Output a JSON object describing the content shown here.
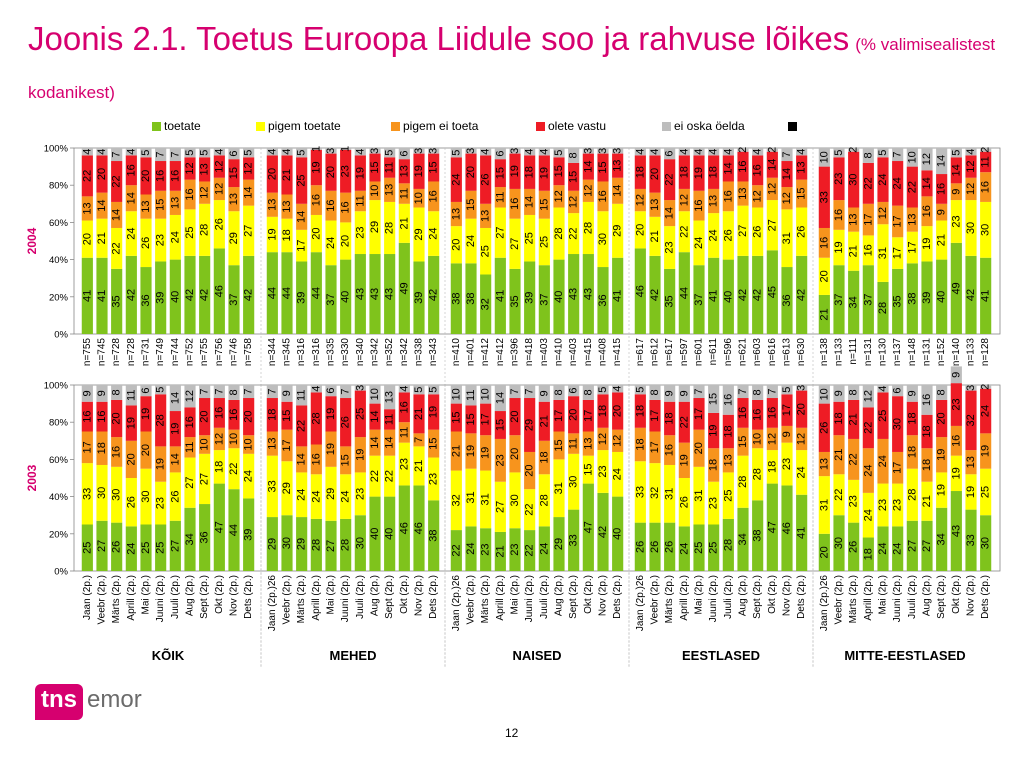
{
  "title": {
    "main": "Joonis 2.1. Toetus Euroopa Liidule soo ja rahvuse lõikes",
    "sub": "(% valimisealistest kodanikest)"
  },
  "page_number": "12",
  "logo": {
    "tns": "tns",
    "emor": "emor"
  },
  "colors": {
    "toetate": "#7fc31c",
    "pigem_toetate": "#ffff00",
    "pigem_ei_toeta": "#f7941d",
    "olete_vastu": "#ee1c25",
    "ei_oska": "#bdbdbd"
  },
  "chart_data": [
    {
      "type": "bar",
      "stacked": true,
      "percent": true,
      "row_label": "2004",
      "ylim": [
        0,
        100
      ],
      "yticks": [
        "0%",
        "20%",
        "40%",
        "60%",
        "80%",
        "100%"
      ],
      "legend": [
        "toetate",
        "pigem toetate",
        "pigem ei toeta",
        "olete vastu",
        "ei oska öelda",
        ""
      ],
      "legend_position": "top",
      "groups": [
        "KÕIK",
        "MEHED",
        "NAISED",
        "EESTLASED",
        "MITTE-EESTLASED"
      ],
      "categories": [
        [
          "n=755",
          "n=745",
          "n=728",
          "n=728",
          "n=731",
          "n=749",
          "n=744",
          "n=752",
          "n=755",
          "n=756",
          "n=746",
          "n=758"
        ],
        [
          "n=344",
          "n=345",
          "n=316",
          "n=316",
          "n=335",
          "n=330",
          "n=340",
          "n=342",
          "n=352",
          "n=342",
          "n=338",
          "n=343"
        ],
        [
          "n=410",
          "n=401",
          "n=412",
          "n=412",
          "n=396",
          "n=418",
          "n=403",
          "n=410",
          "n=403",
          "n=415",
          "n=408",
          "n=415"
        ],
        [
          "n=617",
          "n=612",
          "n=617",
          "n=597",
          "n=601",
          "n=611",
          "n=596",
          "n=621",
          "n=603",
          "n=616",
          "n=613",
          "n=630"
        ],
        [
          "n=138",
          "n=133",
          "n=111",
          "n=131",
          "n=130",
          "n=137",
          "n=148",
          "n=131",
          "n=152",
          "n=140",
          "n=133",
          "n=128"
        ]
      ],
      "series": [
        {
          "name": "toetate",
          "values": [
            [
              41,
              41,
              35,
              42,
              36,
              39,
              40,
              42,
              42,
              46,
              37,
              42
            ],
            [
              44,
              44,
              39,
              44,
              37,
              40,
              43,
              43,
              43,
              49,
              39,
              42
            ],
            [
              38,
              38,
              32,
              41,
              35,
              39,
              37,
              40,
              43,
              43,
              36,
              41
            ],
            [
              46,
              42,
              35,
              44,
              37,
              41,
              40,
              42,
              42,
              45,
              36,
              42
            ],
            [
              21,
              37,
              34,
              37,
              28,
              35,
              38,
              39,
              40,
              49,
              42,
              41
            ]
          ]
        },
        {
          "name": "pigem toetate",
          "values": [
            [
              20,
              21,
              22,
              24,
              26,
              23,
              24,
              25,
              28,
              26,
              29,
              27
            ],
            [
              19,
              18,
              17,
              20,
              24,
              20,
              23,
              29,
              28,
              21,
              29,
              24
            ],
            [
              20,
              24,
              25,
              27,
              27,
              25,
              25,
              28,
              22,
              28,
              30,
              29
            ],
            [
              20,
              21,
              23,
              22,
              24,
              24,
              26,
              27,
              26,
              27,
              31,
              26
            ],
            [
              20,
              19,
              21,
              16,
              31,
              17,
              17,
              19,
              21,
              23,
              30,
              30
            ]
          ]
        },
        {
          "name": "pigem ei toeta",
          "values": [
            [
              13,
              14,
              14,
              14,
              13,
              15,
              13,
              16,
              12,
              12,
              13,
              14
            ],
            [
              13,
              13,
              14,
              16,
              16,
              16,
              11,
              10,
              13,
              11,
              10,
              16
            ],
            [
              13,
              15,
              13,
              11,
              16,
              14,
              15,
              12,
              12,
              12,
              16,
              14
            ],
            [
              12,
              13,
              14,
              12,
              16,
              13,
              16,
              13,
              12,
              12,
              12,
              15
            ],
            [
              16,
              16,
              13,
              17,
              12,
              17,
              13,
              16,
              9,
              9,
              12,
              16
            ]
          ]
        },
        {
          "name": "olete vastu",
          "values": [
            [
              22,
              20,
              22,
              16,
              20,
              16,
              16,
              12,
              13,
              12,
              15,
              12
            ],
            [
              20,
              21,
              25,
              19,
              20,
              23,
              19,
              15,
              11,
              13,
              19,
              15
            ],
            [
              24,
              20,
              26,
              15,
              19,
              18,
              19,
              15,
              15,
              14,
              15,
              13
            ],
            [
              18,
              20,
              22,
              18,
              19,
              18,
              14,
              16,
              16,
              14,
              14,
              13
            ],
            [
              33,
              23,
              30,
              22,
              24,
              24,
              22,
              14,
              16,
              14,
              12,
              11
            ]
          ]
        },
        {
          "name": "ei oska öelda",
          "values": [
            [
              4,
              4,
              7,
              4,
              5,
              7,
              7,
              5,
              5,
              4,
              6,
              5
            ],
            [
              4,
              4,
              5,
              1,
              3,
              1,
              4,
              3,
              5,
              6,
              3,
              3
            ],
            [
              5,
              3,
              4,
              6,
              3,
              4,
              4,
              5,
              8,
              3,
              3,
              3
            ],
            [
              4,
              4,
              6,
              4,
              4,
              4,
              4,
              2,
              4,
              2,
              7,
              4
            ],
            [
              10,
              5,
              2,
              8,
              5,
              7,
              10,
              12,
              14,
              5,
              4,
              2
            ]
          ]
        }
      ]
    },
    {
      "type": "bar",
      "stacked": true,
      "percent": true,
      "row_label": "2003",
      "ylim": [
        0,
        100
      ],
      "yticks": [
        "0%",
        "20%",
        "40%",
        "60%",
        "80%",
        "100%"
      ],
      "groups": [
        "KÕIK",
        "MEHED",
        "NAISED",
        "EESTLASED",
        "MITTE-EESTLASED"
      ],
      "categories": [
        [
          "Jaan (2p.)",
          "Veebr (2p.)",
          "Märts (2p.)",
          "Aprill (2p.)",
          "Mai (2p.)",
          "Juuni (2p.)",
          "Juuli (2p.)",
          "Aug (2p.)",
          "Sept (2p.)",
          "Okt (2p.)",
          "Nov (2p.)",
          "Dets (2p.)"
        ],
        [
          "Jaan (2p.)26",
          "Veebr (2p.)",
          "Märts (2p.)",
          "Aprill (2p.)",
          "Mai (2p.)",
          "Juuni (2p.)",
          "Juuli (2p.)",
          "Aug (2p.)",
          "Sept (2p.)",
          "Okt (2p.)",
          "Nov (2p.)",
          "Dets (2p.)"
        ],
        [
          "Jaan (2p.)26",
          "Veebr (2p.)",
          "Märts (2p.)",
          "Aprill (2p.)",
          "Mai (2p.)",
          "Juuni (2p.)",
          "Juuli (2p.)",
          "Aug (2p.)",
          "Sept (2p.)",
          "Okt (2p.)",
          "Nov (2p.)",
          "Dets (2p.)"
        ],
        [
          "Jaan (2p.)26",
          "Veebr (2p.)",
          "Märts (2p.)",
          "Aprill (2p.)",
          "Mai (2p.)",
          "Juuni (2p.)",
          "Juuli (2p.)",
          "Aug (2p.)",
          "Sept (2p.)",
          "Okt (2p.)",
          "Nov (2p.)",
          "Dets (2p.)"
        ],
        [
          "Jaan (2p.)26",
          "Veebr (2p.)",
          "Märts (2p.)",
          "Aprill (2p.)",
          "Mai (2p.)",
          "Juuni (2p.)",
          "Juuli (2p.)",
          "Aug (2p.)",
          "Sept (2p.)",
          "Okt (2p.)",
          "Nov (2p.)",
          "Dets (2p.)"
        ]
      ],
      "series": [
        {
          "name": "toetate",
          "values": [
            [
              25,
              27,
              26,
              24,
              25,
              25,
              27,
              34,
              36,
              47,
              44,
              39
            ],
            [
              29,
              30,
              29,
              28,
              27,
              28,
              30,
              40,
              40,
              46,
              46,
              38
            ],
            [
              22,
              24,
              23,
              21,
              23,
              22,
              24,
              29,
              33,
              47,
              42,
              40
            ],
            [
              26,
              26,
              26,
              24,
              25,
              25,
              28,
              34,
              38,
              47,
              46,
              41
            ],
            [
              20,
              30,
              26,
              18,
              24,
              24,
              27,
              27,
              34,
              43,
              33,
              30
            ]
          ]
        },
        {
          "name": "pigem toetate",
          "values": [
            [
              33,
              30,
              30,
              26,
              30,
              23,
              26,
              27,
              27,
              18,
              22,
              24
            ],
            [
              33,
              29,
              24,
              24,
              29,
              24,
              23,
              22,
              22,
              23,
              21,
              23
            ],
            [
              32,
              31,
              31,
              27,
              30,
              22,
              28,
              31,
              30,
              15,
              23,
              24
            ],
            [
              33,
              32,
              31,
              26,
              31,
              23,
              25,
              28,
              28,
              18,
              23,
              24
            ],
            [
              31,
              22,
              23,
              24,
              23,
              23,
              28,
              21,
              19,
              19,
              19,
              25
            ]
          ]
        },
        {
          "name": "pigem ei toeta",
          "values": [
            [
              17,
              18,
              16,
              20,
              20,
              19,
              14,
              11,
              10,
              12,
              10,
              10
            ],
            [
              13,
              17,
              14,
              16,
              19,
              15,
              19,
              14,
              14,
              11,
              7,
              15
            ],
            [
              21,
              19,
              19,
              23,
              20,
              20,
              18,
              15,
              11,
              13,
              12,
              12
            ],
            [
              18,
              17,
              16,
              19,
              20,
              18,
              13,
              15,
              10,
              12,
              9,
              12
            ],
            [
              13,
              21,
              22,
              24,
              24,
              17,
              18,
              18,
              19,
              16,
              13,
              19
            ]
          ]
        },
        {
          "name": "olete vastu",
          "values": [
            [
              16,
              16,
              20,
              19,
              19,
              28,
              19,
              16,
              20,
              16,
              16,
              20
            ],
            [
              18,
              15,
              22,
              28,
              19,
              26,
              25,
              14,
              11,
              16,
              21,
              19
            ],
            [
              15,
              15,
              17,
              15,
              20,
              29,
              21,
              17,
              20,
              17,
              18,
              20
            ],
            [
              18,
              17,
              18,
              22,
              17,
              19,
              18,
              16,
              16,
              16,
              17,
              20
            ],
            [
              26,
              18,
              21,
              22,
              25,
              30,
              18,
              18,
              20,
              23,
              32,
              24
            ]
          ]
        },
        {
          "name": "ei oska öelda",
          "values": [
            [
              9,
              9,
              8,
              11,
              6,
              5,
              14,
              12,
              7,
              7,
              8,
              7
            ],
            [
              7,
              9,
              11,
              4,
              6,
              7,
              3,
              10,
              13,
              4,
              5,
              5
            ],
            [
              10,
              11,
              10,
              14,
              7,
              7,
              9,
              8,
              6,
              8,
              5,
              4
            ],
            [
              5,
              8,
              9,
              9,
              7,
              15,
              16,
              7,
              8,
              7,
              5,
              3
            ],
            [
              10,
              9,
              8,
              12,
              4,
              6,
              9,
              16,
              8,
              9,
              3,
              2
            ]
          ]
        }
      ]
    }
  ]
}
